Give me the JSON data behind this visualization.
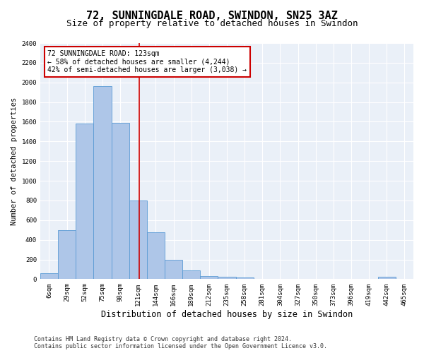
{
  "title": "72, SUNNINGDALE ROAD, SWINDON, SN25 3AZ",
  "subtitle": "Size of property relative to detached houses in Swindon",
  "xlabel": "Distribution of detached houses by size in Swindon",
  "ylabel": "Number of detached properties",
  "categories": [
    "6sqm",
    "29sqm",
    "52sqm",
    "75sqm",
    "98sqm",
    "121sqm",
    "144sqm",
    "166sqm",
    "189sqm",
    "212sqm",
    "235sqm",
    "258sqm",
    "281sqm",
    "304sqm",
    "327sqm",
    "350sqm",
    "373sqm",
    "396sqm",
    "419sqm",
    "442sqm",
    "465sqm"
  ],
  "values": [
    60,
    500,
    1580,
    1960,
    1590,
    800,
    480,
    200,
    90,
    35,
    28,
    20,
    5,
    5,
    5,
    5,
    5,
    5,
    5,
    25,
    0
  ],
  "bar_color": "#aec6e8",
  "bar_edge_color": "#5b9bd5",
  "subject_line_color": "#cc0000",
  "annotation_text": "72 SUNNINGDALE ROAD: 123sqm\n← 58% of detached houses are smaller (4,244)\n42% of semi-detached houses are larger (3,038) →",
  "annotation_box_color": "#cc0000",
  "ylim": [
    0,
    2400
  ],
  "yticks": [
    0,
    200,
    400,
    600,
    800,
    1000,
    1200,
    1400,
    1600,
    1800,
    2000,
    2200,
    2400
  ],
  "bg_color": "#eaf0f8",
  "footer_line1": "Contains HM Land Registry data © Crown copyright and database right 2024.",
  "footer_line2": "Contains public sector information licensed under the Open Government Licence v3.0.",
  "grid_color": "#ffffff",
  "title_fontsize": 11,
  "subtitle_fontsize": 9,
  "xlabel_fontsize": 8.5,
  "ylabel_fontsize": 7.5,
  "tick_fontsize": 6.5,
  "annotation_fontsize": 7,
  "footer_fontsize": 6
}
